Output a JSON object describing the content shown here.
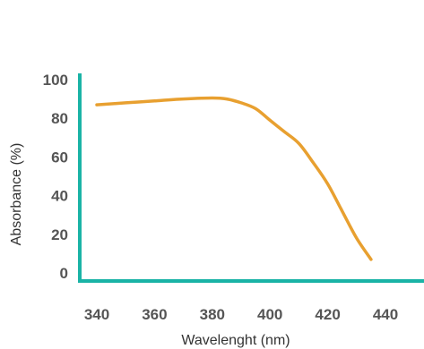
{
  "chart_data": {
    "type": "line",
    "xlabel": "Wavelenght (nm)",
    "ylabel": "Absorbance (%)",
    "xlim": [
      340,
      440
    ],
    "ylim": [
      0,
      100
    ],
    "x_ticks": [
      "340",
      "360",
      "380",
      "400",
      "420",
      "440"
    ],
    "y_ticks": [
      "0",
      "20",
      "40",
      "60",
      "80",
      "100"
    ],
    "grid": false,
    "series": [
      {
        "color": "#E8A030",
        "x": [
          340,
          350,
          360,
          370,
          380,
          385,
          390,
          395,
          400,
          405,
          410,
          415,
          420,
          425,
          430,
          435
        ],
        "y": [
          87,
          88,
          89,
          90,
          90.5,
          90,
          88,
          85,
          79,
          73,
          67,
          57,
          46,
          32,
          18,
          7
        ]
      }
    ],
    "colors": {
      "axis": "#1AB3A6",
      "line": "#E8A030"
    }
  }
}
